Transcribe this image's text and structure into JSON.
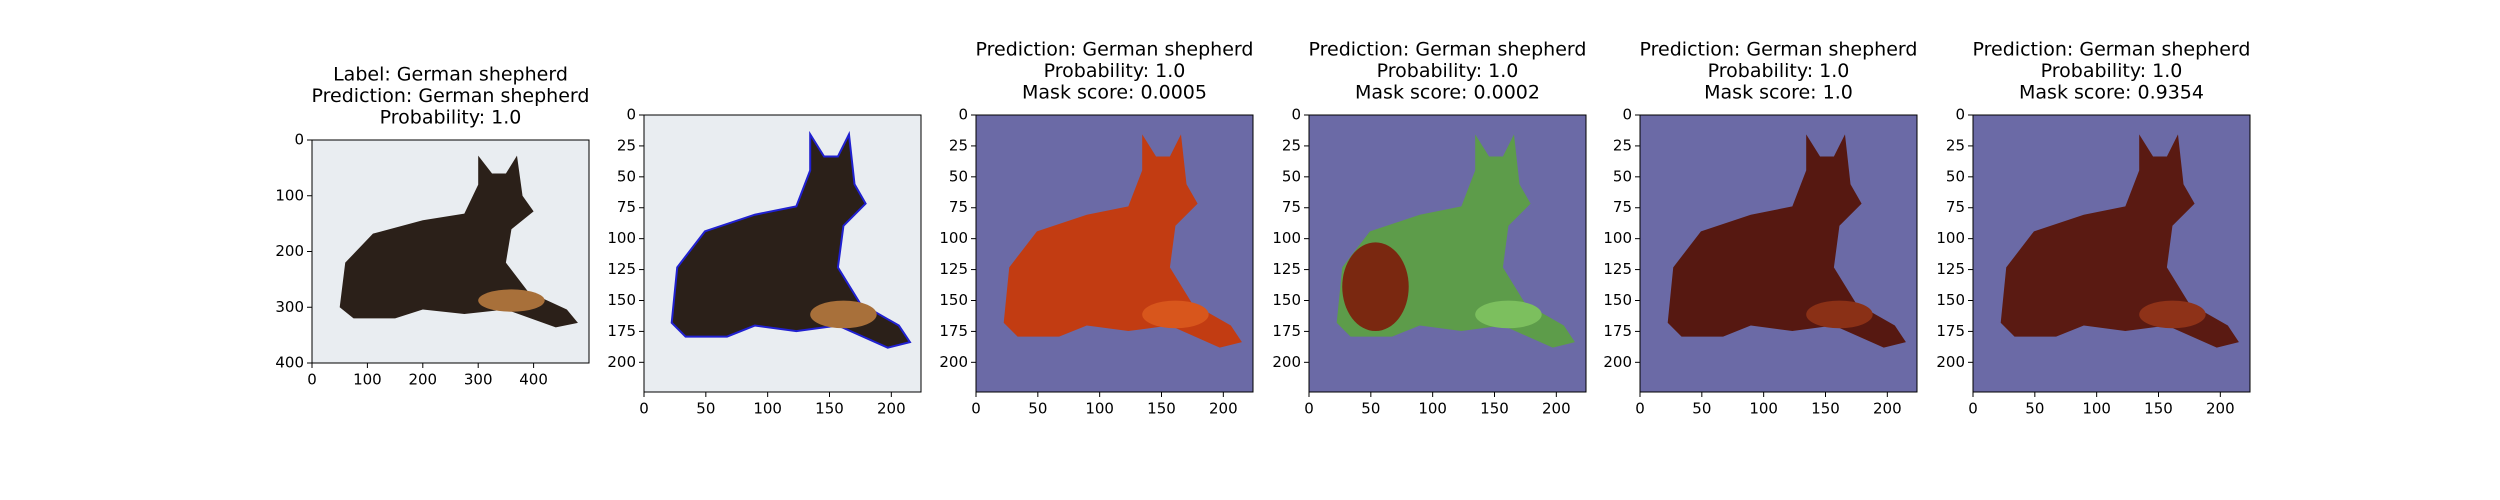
{
  "panels": [
    {
      "title": [
        "Label: German shepherd",
        "Prediction: German shepherd",
        "Probability: 1.0"
      ],
      "xlim": [
        0,
        500
      ],
      "ylim": [
        400,
        0
      ],
      "xticks": [
        0,
        100,
        200,
        300,
        400
      ],
      "yticks": [
        0,
        100,
        200,
        300,
        400
      ]
    },
    {
      "xlim": [
        0,
        224
      ],
      "ylim": [
        224,
        0
      ],
      "xticks": [
        0,
        50,
        100,
        150,
        200
      ],
      "yticks": [
        0,
        25,
        50,
        75,
        100,
        125,
        150,
        175,
        200
      ]
    },
    {
      "title": [
        "Prediction: German shepherd",
        "Probability: 1.0",
        "Mask score: 0.0005"
      ],
      "xlim": [
        0,
        224
      ],
      "ylim": [
        224,
        0
      ],
      "xticks": [
        0,
        50,
        100,
        150,
        200
      ],
      "yticks": [
        0,
        25,
        50,
        75,
        100,
        125,
        150,
        175,
        200
      ]
    },
    {
      "title": [
        "Prediction: German shepherd",
        "Probability: 1.0",
        "Mask score: 0.0002"
      ],
      "xlim": [
        0,
        224
      ],
      "ylim": [
        224,
        0
      ],
      "xticks": [
        0,
        50,
        100,
        150,
        200
      ],
      "yticks": [
        0,
        25,
        50,
        75,
        100,
        125,
        150,
        175,
        200
      ]
    },
    {
      "title": [
        "Prediction: German shepherd",
        "Probability: 1.0",
        "Mask score: 1.0"
      ],
      "xlim": [
        0,
        224
      ],
      "ylim": [
        224,
        0
      ],
      "xticks": [
        0,
        50,
        100,
        150,
        200
      ],
      "yticks": [
        0,
        25,
        50,
        75,
        100,
        125,
        150,
        175,
        200
      ]
    },
    {
      "title": [
        "Prediction: German shepherd",
        "Probability: 1.0",
        "Mask score: 0.9354"
      ],
      "xlim": [
        0,
        224
      ],
      "ylim": [
        224,
        0
      ],
      "xticks": [
        0,
        50,
        100,
        150,
        200
      ],
      "yticks": [
        0,
        25,
        50,
        75,
        100,
        125,
        150,
        175,
        200
      ]
    }
  ]
}
